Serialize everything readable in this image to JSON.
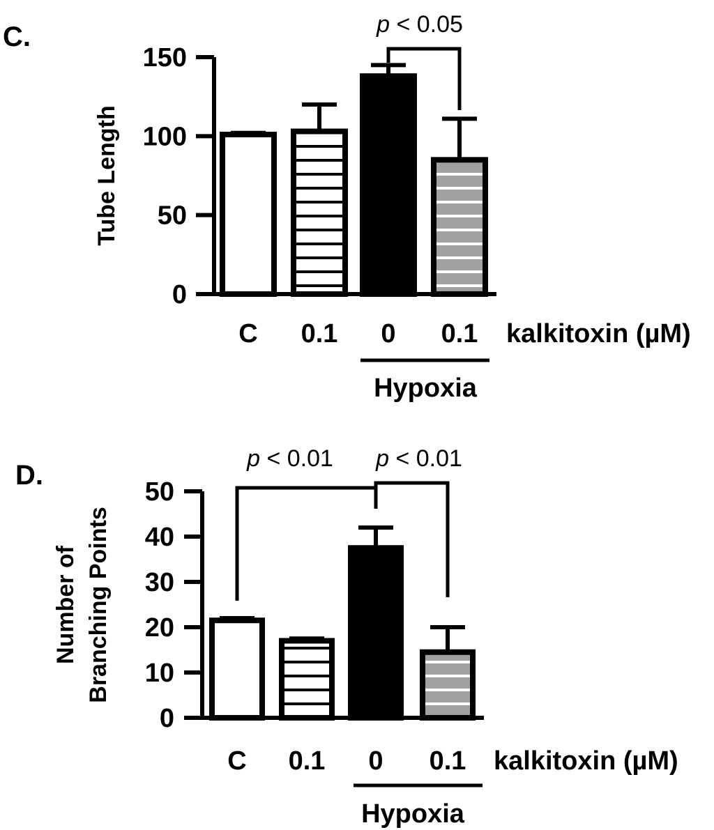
{
  "chart_data": [
    {
      "type": "bar",
      "panel_label": "C.",
      "ylabel": "Tube Length",
      "xlabel": "kalkitoxin (µM)",
      "ylim": [
        0,
        150
      ],
      "yticks": [
        0,
        50,
        100,
        150
      ],
      "categories": [
        "C",
        "0.1",
        "0",
        "0.1"
      ],
      "values": [
        101,
        103,
        138,
        85
      ],
      "errors": [
        1,
        17,
        7,
        26
      ],
      "fills": [
        "white",
        "white-hatched",
        "black",
        "gray-hatched"
      ],
      "group_label": "Hypoxia",
      "group_members": [
        2,
        3
      ],
      "significance": [
        {
          "p": "p",
          "text": "< 0.05",
          "between": [
            2,
            3
          ]
        }
      ]
    },
    {
      "type": "bar",
      "panel_label": "D.",
      "ylabel": [
        "Number of",
        "Branching Points"
      ],
      "xlabel": "kalkitoxin (µM)",
      "ylim": [
        0,
        50
      ],
      "yticks": [
        0,
        10,
        20,
        30,
        40,
        50
      ],
      "categories": [
        "C",
        "0.1",
        "0",
        "0.1"
      ],
      "values": [
        21.5,
        17,
        37.5,
        14.5
      ],
      "errors": [
        0.5,
        0.5,
        4.5,
        5.5
      ],
      "fills": [
        "white",
        "white-hatched",
        "black",
        "gray-hatched"
      ],
      "group_label": "Hypoxia",
      "group_members": [
        2,
        3
      ],
      "significance": [
        {
          "p": "p",
          "text": "< 0.01",
          "between": [
            0,
            2
          ]
        },
        {
          "p": "p",
          "text": "< 0.01",
          "between": [
            2,
            3
          ]
        }
      ]
    }
  ],
  "colors": {
    "ink": "#000000",
    "gray_fill": "#a0a0a0",
    "white_fill": "#ffffff"
  }
}
